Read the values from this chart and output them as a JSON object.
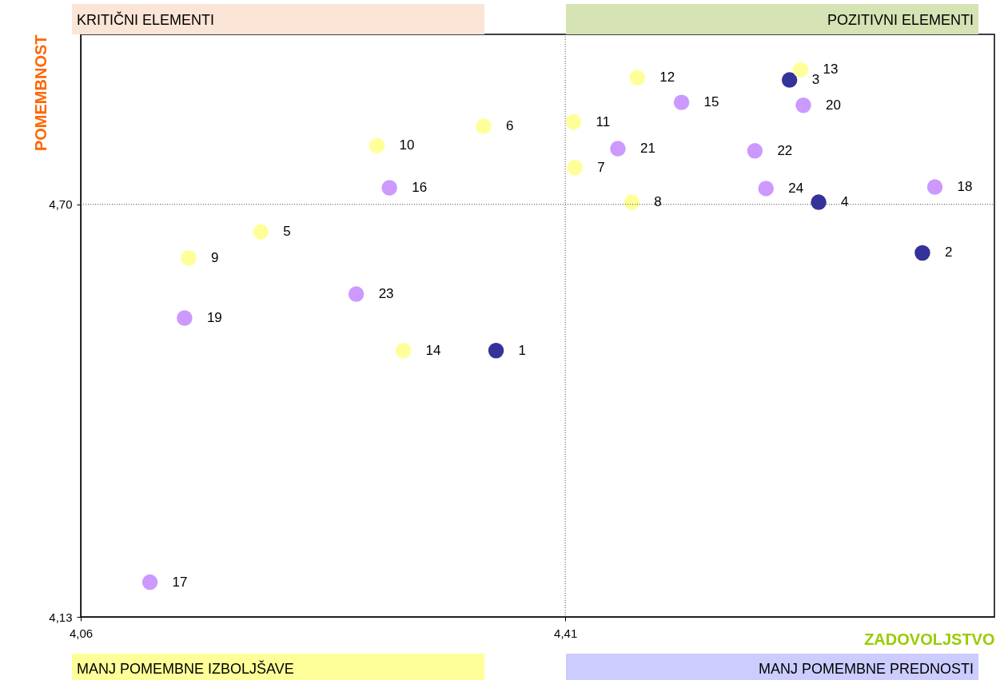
{
  "chart_data": {
    "type": "scatter",
    "xlabel": "ZADOVOLJSTVO",
    "ylabel": "POMEMBNOST",
    "xlim": [
      4.06,
      4.72
    ],
    "ylim": [
      4.13,
      4.935
    ],
    "xticks": [
      {
        "value": 4.06,
        "label": "4,06"
      },
      {
        "value": 4.41,
        "label": "4,41"
      }
    ],
    "yticks": [
      {
        "value": 4.13,
        "label": "4,13"
      },
      {
        "value": 4.7,
        "label": "4,70"
      }
    ],
    "grid": false,
    "legend": false,
    "marker": "circle",
    "ref_lines": [
      {
        "axis": "x",
        "value": 4.41,
        "line_style": "dotted"
      },
      {
        "axis": "y",
        "value": 4.7,
        "line_style": "dotted"
      }
    ],
    "series": [
      {
        "color": "#333399",
        "x": [
          4.36,
          4.668,
          4.572,
          4.593
        ],
        "values": [
          4.498,
          4.633,
          4.872,
          4.703
        ]
      },
      {
        "color": "#ffff99",
        "x": [
          4.19,
          4.351,
          4.417,
          4.458,
          4.138,
          4.274,
          4.416,
          4.462,
          4.58,
          4.293
        ],
        "values": [
          4.662,
          4.808,
          4.751,
          4.703,
          4.626,
          4.781,
          4.814,
          4.875,
          4.886,
          4.498
        ]
      },
      {
        "color": "#cc99ff",
        "x": [
          4.494,
          4.283,
          4.11,
          4.677,
          4.135,
          4.582,
          4.448,
          4.547,
          4.259,
          4.555
        ],
        "values": [
          4.841,
          4.723,
          4.178,
          4.724,
          4.543,
          4.837,
          4.777,
          4.774,
          4.576,
          4.722
        ]
      }
    ],
    "annotations": [
      "KRITIČNI ELEMENTI",
      "POZITIVNI ELEMENTI",
      "MANJ POMEMBNE IZBOLJŠAVE",
      "MANJ POMEMBNE PREDNOSTI",
      {
        "text": "1",
        "x": 4.36,
        "y": 4.498
      },
      {
        "text": "2",
        "x": 4.668,
        "y": 4.633
      },
      {
        "text": "3",
        "x": 4.572,
        "y": 4.872
      },
      {
        "text": "4",
        "x": 4.593,
        "y": 4.703
      },
      {
        "text": "5",
        "x": 4.19,
        "y": 4.662
      },
      {
        "text": "6",
        "x": 4.351,
        "y": 4.808
      },
      {
        "text": "7",
        "x": 4.417,
        "y": 4.751
      },
      {
        "text": "8",
        "x": 4.458,
        "y": 4.703
      },
      {
        "text": "9",
        "x": 4.138,
        "y": 4.626
      },
      {
        "text": "10",
        "x": 4.274,
        "y": 4.781
      },
      {
        "text": "11",
        "x": 4.416,
        "y": 4.814
      },
      {
        "text": "12",
        "x": 4.462,
        "y": 4.875
      },
      {
        "text": "13",
        "x": 4.58,
        "y": 4.886
      },
      {
        "text": "14",
        "x": 4.293,
        "y": 4.498
      },
      {
        "text": "15",
        "x": 4.494,
        "y": 4.841
      },
      {
        "text": "16",
        "x": 4.283,
        "y": 4.723
      },
      {
        "text": "17",
        "x": 4.11,
        "y": 4.178
      },
      {
        "text": "18",
        "x": 4.677,
        "y": 4.724
      },
      {
        "text": "19",
        "x": 4.135,
        "y": 4.543
      },
      {
        "text": "20",
        "x": 4.582,
        "y": 4.837
      },
      {
        "text": "21",
        "x": 4.448,
        "y": 4.777
      },
      {
        "text": "22",
        "x": 4.547,
        "y": 4.774
      },
      {
        "text": "23",
        "x": 4.259,
        "y": 4.576
      },
      {
        "text": "24",
        "x": 4.555,
        "y": 4.722
      }
    ]
  }
}
